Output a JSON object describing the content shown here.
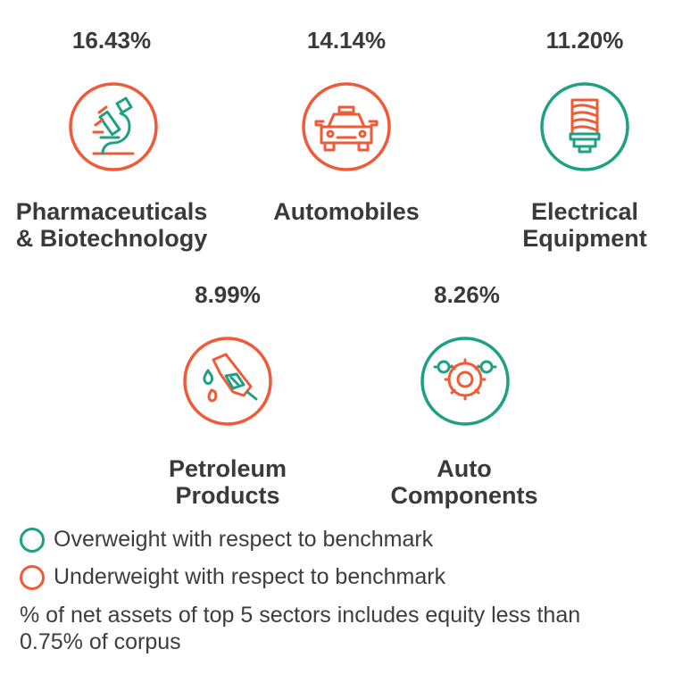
{
  "colors": {
    "overweight": "#1ea084",
    "underweight": "#f05a36",
    "text": "#3a3a3a"
  },
  "sectors": [
    {
      "percent": "16.43%",
      "label_line1": "Pharmaceuticals",
      "label_line2": "& Biotechnology",
      "icon": "microscope-icon",
      "weight": "underweight"
    },
    {
      "percent": "14.14%",
      "label_line1": "Automobiles",
      "label_line2": "",
      "icon": "car-icon",
      "weight": "underweight"
    },
    {
      "percent": "11.20%",
      "label_line1": "Electrical",
      "label_line2": "Equipment",
      "icon": "light-bulb-icon",
      "weight": "overweight"
    },
    {
      "percent": "8.99%",
      "label_line1": "Petroleum",
      "label_line2": "Products",
      "icon": "fuel-nozzle-icon",
      "weight": "underweight"
    },
    {
      "percent": "8.26%",
      "label_line1": "Auto",
      "label_line2": "Components",
      "icon": "gears-icon",
      "weight": "overweight"
    }
  ],
  "legend": {
    "overweight": "Overweight with respect to benchmark",
    "underweight": "Underweight with respect to benchmark"
  },
  "note": "% of net assets of top 5 sectors includes equity less than 0.75% of corpus"
}
